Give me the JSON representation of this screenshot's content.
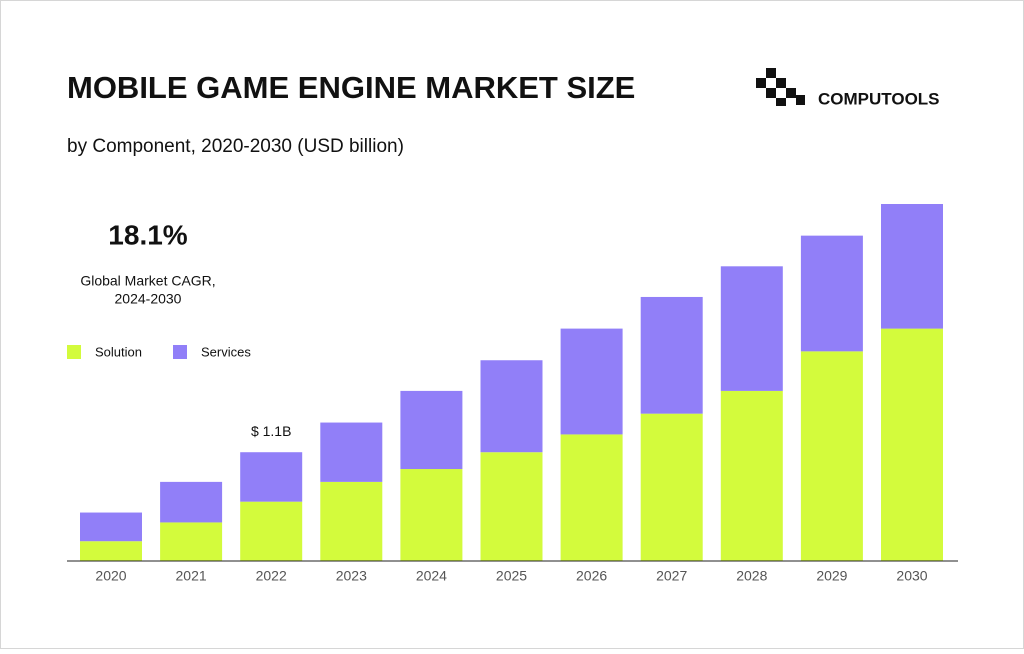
{
  "brand": "COMPUTOOLS",
  "stat": {
    "value": "18.1%",
    "label_lines": [
      "Global Market CAGR,",
      "2024-2030"
    ]
  },
  "chart_data": {
    "type": "stacked_bar",
    "title": "MOBILE GAME ENGINE MARKET SIZE",
    "subtitle": "by Component, 2020-2030 (USD billion)",
    "categories": [
      "2020",
      "2021",
      "2022",
      "2023",
      "2024",
      "2025",
      "2026",
      "2027",
      "2028",
      "2029",
      "2030"
    ],
    "series": [
      {
        "name": "Solution",
        "color": "#d3fb3c",
        "values": [
          0.2,
          0.39,
          0.6,
          0.8,
          0.93,
          1.1,
          1.28,
          1.49,
          1.72,
          2.12,
          2.35
        ]
      },
      {
        "name": "Services",
        "color": "#917ff8",
        "values": [
          0.29,
          0.41,
          0.5,
          0.6,
          0.79,
          0.93,
          1.07,
          1.18,
          1.26,
          1.17,
          1.26
        ]
      }
    ],
    "annotations": [
      {
        "category": "2022",
        "text": "$ 1.1B",
        "value": 1.1
      }
    ]
  }
}
